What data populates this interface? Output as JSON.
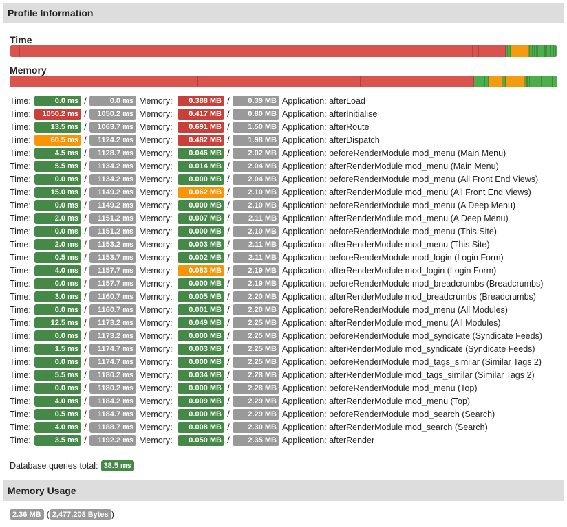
{
  "profile": {
    "title": "Profile Information"
  },
  "time_bar": {
    "title": "Time",
    "segments": [
      {
        "c": "bad",
        "v": 2.32
      },
      {
        "c": "bad",
        "v": 100
      },
      {
        "c": "bad",
        "v": 1.34
      },
      {
        "c": "bad",
        "v": 6.02
      },
      {
        "c": "good",
        "v": 0.43
      },
      {
        "c": "good",
        "v": 0.52
      },
      {
        "c": "good",
        "v": 0.08
      },
      {
        "c": "warn",
        "v": 4.0
      },
      {
        "c": "good",
        "v": 0.3
      },
      {
        "c": "good",
        "v": 0.2
      },
      {
        "c": "good",
        "v": 0.3
      },
      {
        "c": "good",
        "v": 0.2
      },
      {
        "c": "good",
        "v": 0.3
      },
      {
        "c": "good",
        "v": 0.2
      },
      {
        "c": "good",
        "v": 0.3
      },
      {
        "c": "good",
        "v": 0.3
      },
      {
        "c": "good",
        "v": 0.3
      },
      {
        "c": "good",
        "v": 1.2
      },
      {
        "c": "good",
        "v": 0.2
      },
      {
        "c": "good",
        "v": 0.3
      },
      {
        "c": "good",
        "v": 0.2
      },
      {
        "c": "good",
        "v": 0.5
      },
      {
        "c": "good",
        "v": 0.2
      },
      {
        "c": "good",
        "v": 0.4
      },
      {
        "c": "good",
        "v": 0.2
      },
      {
        "c": "good",
        "v": 0.4
      },
      {
        "c": "good",
        "v": 0.3
      }
    ]
  },
  "memory_bar": {
    "title": "Memory",
    "segments": [
      {
        "c": "bad",
        "v": 16.5
      },
      {
        "c": "bad",
        "v": 17.7
      },
      {
        "c": "bad",
        "v": 29.4
      },
      {
        "c": "bad",
        "v": 20.5
      },
      {
        "c": "good",
        "v": 2.0
      },
      {
        "c": "good",
        "v": 0.6
      },
      {
        "c": "warn",
        "v": 2.6
      },
      {
        "c": "good",
        "v": 0.3
      },
      {
        "c": "good",
        "v": 0.3
      },
      {
        "c": "warn",
        "v": 3.5
      },
      {
        "c": "good",
        "v": 0.3
      },
      {
        "c": "good",
        "v": 0.2
      },
      {
        "c": "good",
        "v": 0.3
      },
      {
        "c": "good",
        "v": 2.1
      },
      {
        "c": "good",
        "v": 0.2
      },
      {
        "c": "good",
        "v": 0.3
      },
      {
        "c": "good",
        "v": 1.5
      },
      {
        "c": "good",
        "v": 0.2
      },
      {
        "c": "good",
        "v": 0.4
      },
      {
        "c": "good",
        "v": 0.3
      }
    ]
  },
  "labels": {
    "time": "Time:",
    "memory": "Memory:",
    "slash": "/"
  },
  "marks": [
    {
      "t": "0.0 ms",
      "tc": "good",
      "tt": "0.0 ms",
      "m": "0.388 MB",
      "mc": "bad",
      "mt": "0.39 MB",
      "app": "Application: afterLoad"
    },
    {
      "t": "1050.2 ms",
      "tc": "bad",
      "tt": "1050.2 ms",
      "m": "0.417 MB",
      "mc": "bad",
      "mt": "0.80 MB",
      "app": "Application: afterInitialise"
    },
    {
      "t": "13.5 ms",
      "tc": "good",
      "tt": "1063.7 ms",
      "m": "0.691 MB",
      "mc": "bad",
      "mt": "1.50 MB",
      "app": "Application: afterRoute"
    },
    {
      "t": "60.5 ms",
      "tc": "warn",
      "tt": "1124.2 ms",
      "m": "0.482 MB",
      "mc": "bad",
      "mt": "1.98 MB",
      "app": "Application: afterDispatch"
    },
    {
      "t": "4.5 ms",
      "tc": "good",
      "tt": "1128.7 ms",
      "m": "0.046 MB",
      "mc": "good",
      "mt": "2.02 MB",
      "app": "Application: beforeRenderModule mod_menu (Main Menu)"
    },
    {
      "t": "5.5 ms",
      "tc": "good",
      "tt": "1134.2 ms",
      "m": "0.014 MB",
      "mc": "good",
      "mt": "2.04 MB",
      "app": "Application: afterRenderModule mod_menu (Main Menu)"
    },
    {
      "t": "0.0 ms",
      "tc": "good",
      "tt": "1134.2 ms",
      "m": "0.000 MB",
      "mc": "good",
      "mt": "2.04 MB",
      "app": "Application: beforeRenderModule mod_menu (All Front End Views)"
    },
    {
      "t": "15.0 ms",
      "tc": "good",
      "tt": "1149.2 ms",
      "m": "0.062 MB",
      "mc": "warn",
      "mt": "2.10 MB",
      "app": "Application: afterRenderModule mod_menu (All Front End Views)"
    },
    {
      "t": "0.0 ms",
      "tc": "good",
      "tt": "1149.2 ms",
      "m": "0.000 MB",
      "mc": "good",
      "mt": "2.10 MB",
      "app": "Application: beforeRenderModule mod_menu (A Deep Menu)"
    },
    {
      "t": "2.0 ms",
      "tc": "good",
      "tt": "1151.2 ms",
      "m": "0.007 MB",
      "mc": "good",
      "mt": "2.11 MB",
      "app": "Application: afterRenderModule mod_menu (A Deep Menu)"
    },
    {
      "t": "0.0 ms",
      "tc": "good",
      "tt": "1151.2 ms",
      "m": "0.000 MB",
      "mc": "good",
      "mt": "2.10 MB",
      "app": "Application: beforeRenderModule mod_menu (This Site)"
    },
    {
      "t": "2.0 ms",
      "tc": "good",
      "tt": "1153.2 ms",
      "m": "0.003 MB",
      "mc": "good",
      "mt": "2.11 MB",
      "app": "Application: afterRenderModule mod_menu (This Site)"
    },
    {
      "t": "0.5 ms",
      "tc": "good",
      "tt": "1153.7 ms",
      "m": "0.002 MB",
      "mc": "good",
      "mt": "2.11 MB",
      "app": "Application: beforeRenderModule mod_login (Login Form)"
    },
    {
      "t": "4.0 ms",
      "tc": "good",
      "tt": "1157.7 ms",
      "m": "0.083 MB",
      "mc": "warn",
      "mt": "2.19 MB",
      "app": "Application: afterRenderModule mod_login (Login Form)"
    },
    {
      "t": "0.0 ms",
      "tc": "good",
      "tt": "1157.7 ms",
      "m": "0.000 MB",
      "mc": "good",
      "mt": "2.19 MB",
      "app": "Application: beforeRenderModule mod_breadcrumbs (Breadcrumbs)"
    },
    {
      "t": "3.0 ms",
      "tc": "good",
      "tt": "1160.7 ms",
      "m": "0.005 MB",
      "mc": "good",
      "mt": "2.20 MB",
      "app": "Application: afterRenderModule mod_breadcrumbs (Breadcrumbs)"
    },
    {
      "t": "0.0 ms",
      "tc": "good",
      "tt": "1160.7 ms",
      "m": "0.001 MB",
      "mc": "good",
      "mt": "2.20 MB",
      "app": "Application: beforeRenderModule mod_menu (All Modules)"
    },
    {
      "t": "12.5 ms",
      "tc": "good",
      "tt": "1173.2 ms",
      "m": "0.049 MB",
      "mc": "good",
      "mt": "2.25 MB",
      "app": "Application: afterRenderModule mod_menu (All Modules)"
    },
    {
      "t": "0.0 ms",
      "tc": "good",
      "tt": "1173.2 ms",
      "m": "0.000 MB",
      "mc": "good",
      "mt": "2.25 MB",
      "app": "Application: beforeRenderModule mod_syndicate (Syndicate Feeds)"
    },
    {
      "t": "1.5 ms",
      "tc": "good",
      "tt": "1174.7 ms",
      "m": "0.003 MB",
      "mc": "good",
      "mt": "2.25 MB",
      "app": "Application: afterRenderModule mod_syndicate (Syndicate Feeds)"
    },
    {
      "t": "0.0 ms",
      "tc": "good",
      "tt": "1174.7 ms",
      "m": "0.000 MB",
      "mc": "good",
      "mt": "2.25 MB",
      "app": "Application: beforeRenderModule mod_tags_similar (Similar Tags 2)"
    },
    {
      "t": "5.5 ms",
      "tc": "good",
      "tt": "1180.2 ms",
      "m": "0.034 MB",
      "mc": "good",
      "mt": "2.28 MB",
      "app": "Application: afterRenderModule mod_tags_similar (Similar Tags 2)"
    },
    {
      "t": "0.0 ms",
      "tc": "good",
      "tt": "1180.2 ms",
      "m": "0.000 MB",
      "mc": "good",
      "mt": "2.28 MB",
      "app": "Application: beforeRenderModule mod_menu (Top)"
    },
    {
      "t": "4.0 ms",
      "tc": "good",
      "tt": "1184.2 ms",
      "m": "0.009 MB",
      "mc": "good",
      "mt": "2.29 MB",
      "app": "Application: afterRenderModule mod_menu (Top)"
    },
    {
      "t": "0.5 ms",
      "tc": "good",
      "tt": "1184.7 ms",
      "m": "0.000 MB",
      "mc": "good",
      "mt": "2.29 MB",
      "app": "Application: beforeRenderModule mod_search (Search)"
    },
    {
      "t": "4.0 ms",
      "tc": "good",
      "tt": "1188.7 ms",
      "m": "0.008 MB",
      "mc": "good",
      "mt": "2.30 MB",
      "app": "Application: afterRenderModule mod_search (Search)"
    },
    {
      "t": "3.5 ms",
      "tc": "good",
      "tt": "1192.2 ms",
      "m": "0.050 MB",
      "mc": "good",
      "mt": "2.35 MB",
      "app": "Application: afterRender"
    }
  ],
  "db": {
    "label": "Database queries total:",
    "value": "38.5 ms"
  },
  "memory_usage": {
    "title": "Memory Usage",
    "mb": "2.36 MB",
    "open": "(",
    "bytes": "2,477,208 Bytes",
    "close": ")"
  }
}
